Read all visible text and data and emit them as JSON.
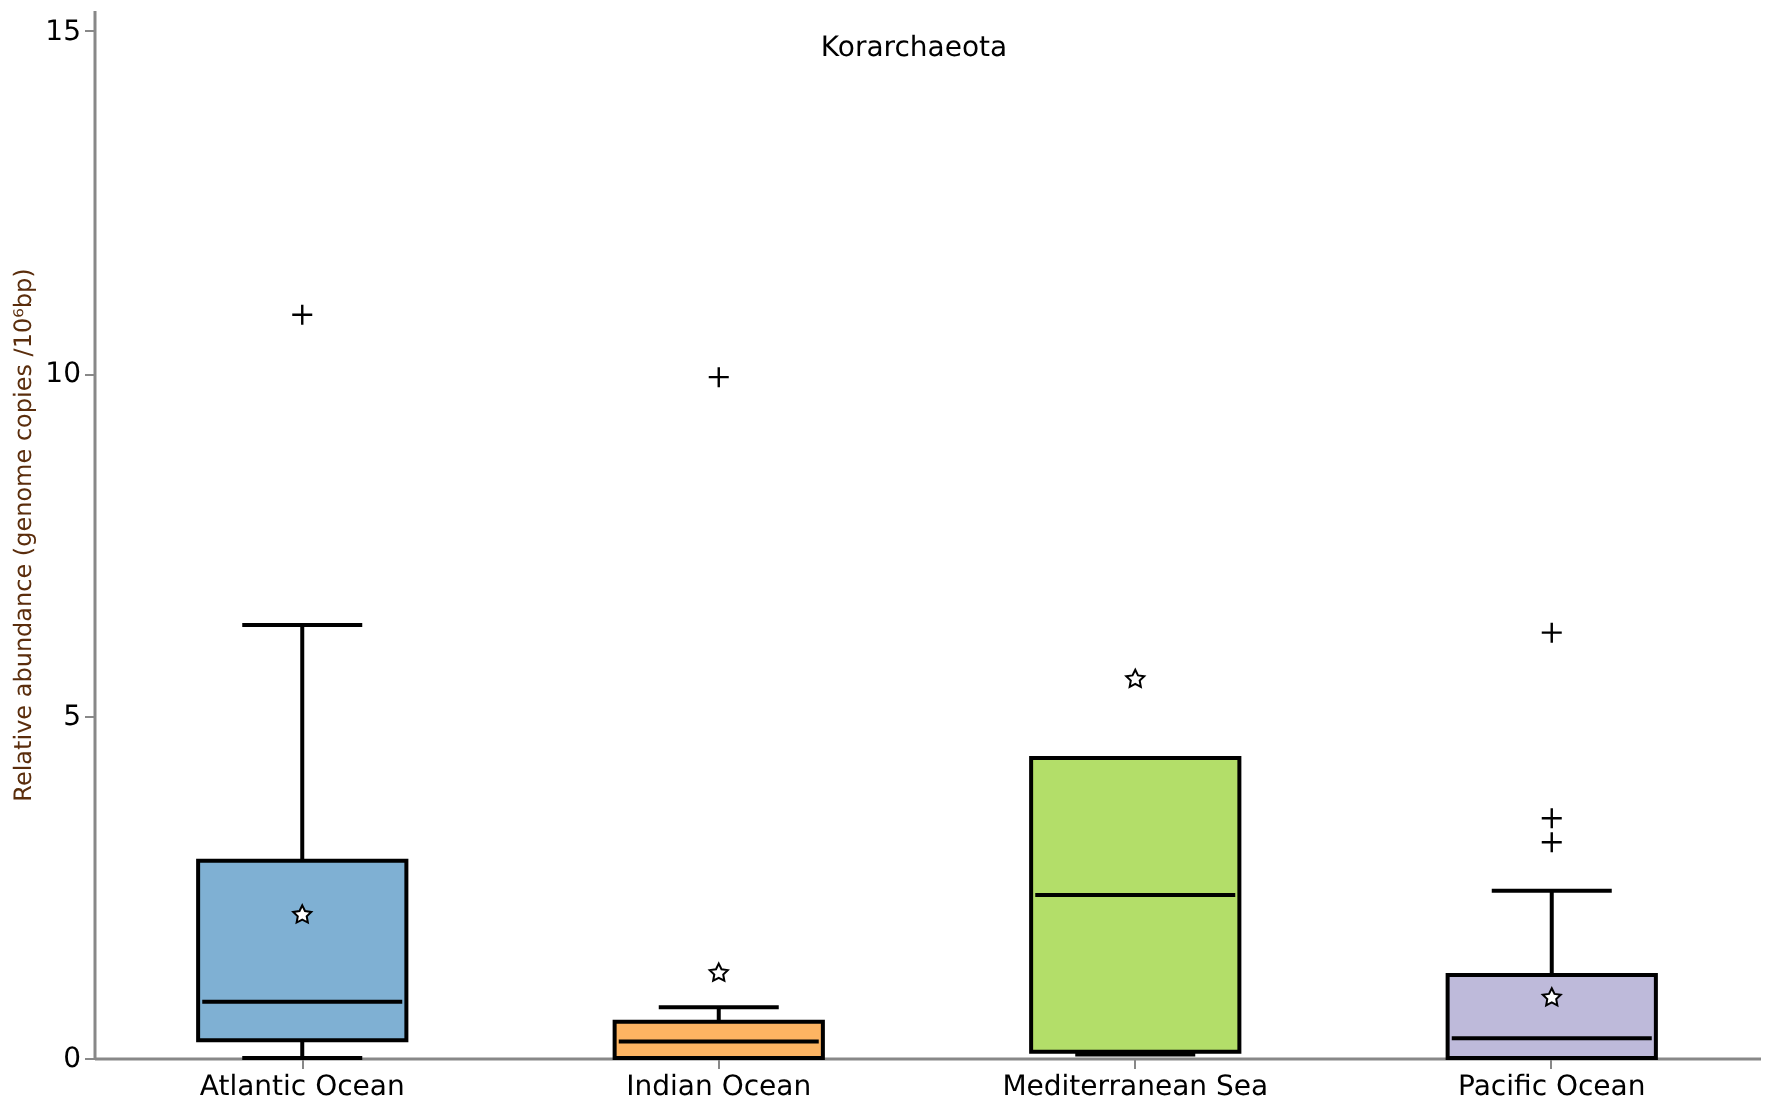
{
  "chart_data": {
    "type": "box",
    "title": "Korarchaeota",
    "ylabel": "Relative abundance (genome copies /10⁶bp)",
    "categories": [
      "Atlantic Ocean",
      "Indian Ocean",
      "Mediterranean Sea",
      "Pacific Ocean"
    ],
    "colors": [
      "#7fb0d3",
      "#fdb462",
      "#b3de69",
      "#bebada"
    ],
    "boxes": [
      {
        "low": 0,
        "q1": 0.26,
        "median": 0.82,
        "q3": 2.88,
        "high": 6.32,
        "mean": 2.09,
        "outliers": [
          10.85
        ]
      },
      {
        "low": 0,
        "q1": 0,
        "median": 0.24,
        "q3": 0.53,
        "high": 0.74,
        "mean": 1.24,
        "outliers": [
          9.94
        ]
      },
      {
        "low": 0.05,
        "q1": 0.09,
        "median": 2.38,
        "q3": 4.38,
        "high": 4.38,
        "mean": 5.53
      },
      {
        "low": 0,
        "q1": 0,
        "median": 0.29,
        "q3": 1.21,
        "high": 2.44,
        "mean": 0.88,
        "outliers": [
          6.21,
          3.5,
          3.15
        ]
      }
    ],
    "ylim": [
      0,
      15.3
    ],
    "yticks": [
      0,
      5,
      10,
      15
    ]
  }
}
